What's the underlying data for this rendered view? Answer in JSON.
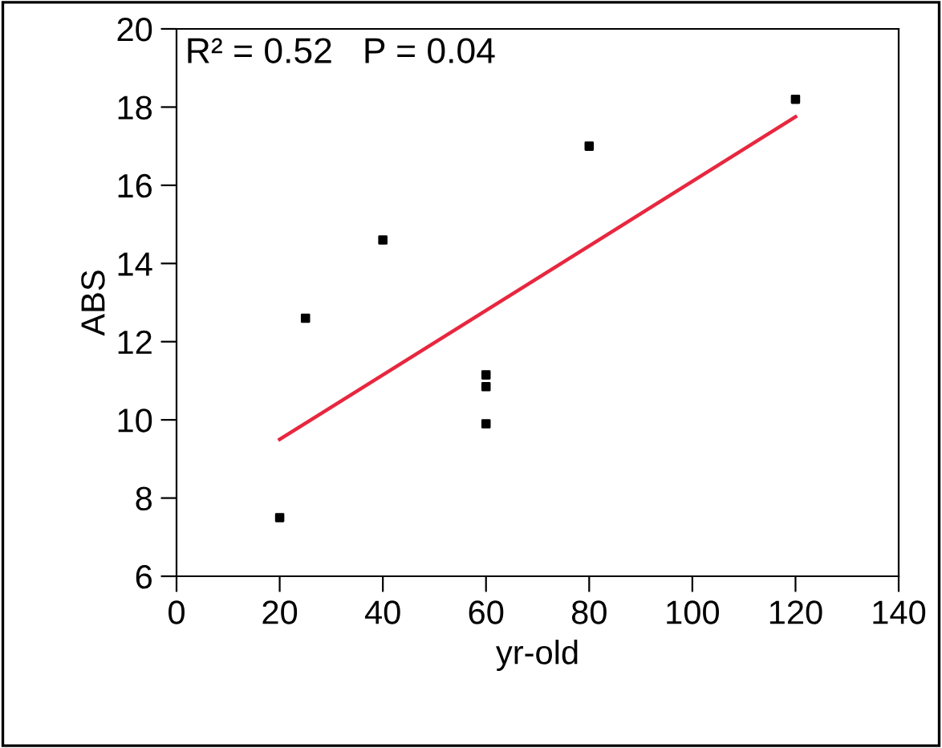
{
  "chart_data": {
    "type": "scatter",
    "xlabel": "yr-old",
    "ylabel": "ABS",
    "annotations": [
      "R² = 0.52   P = 0.04"
    ],
    "grid": false,
    "legend": false,
    "series": [
      {
        "marker": "square",
        "color": "#000000",
        "x": [
          20,
          25,
          40,
          60,
          60,
          60,
          80,
          120
        ],
        "values": [
          7.5,
          12.6,
          14.6,
          11.15,
          10.85,
          9.9,
          17.0,
          18.2
        ]
      },
      {
        "type": "line",
        "color": "#e8273f",
        "x": [
          20,
          120
        ],
        "values": [
          9.5,
          17.75
        ]
      }
    ],
    "xlim": [
      0,
      140
    ],
    "ylim": [
      6,
      20
    ],
    "xticks": [
      0,
      20,
      40,
      60,
      80,
      100,
      120,
      140
    ],
    "yticks": [
      6,
      8,
      10,
      12,
      14,
      16,
      18,
      20
    ]
  }
}
